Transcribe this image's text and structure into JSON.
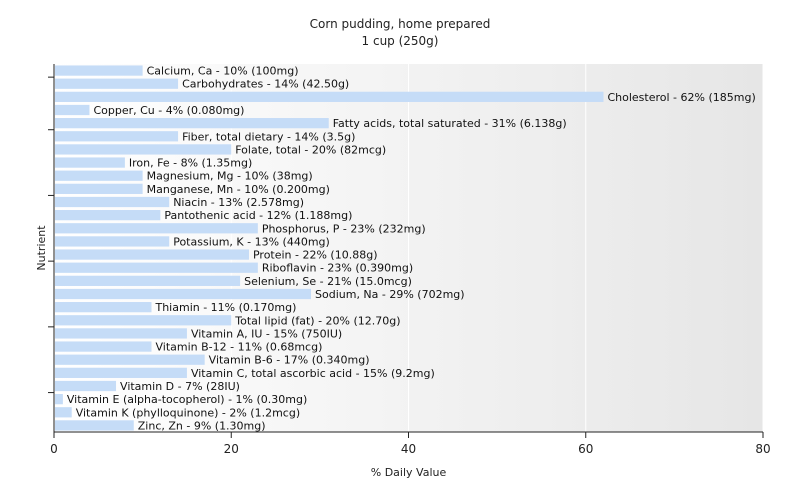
{
  "chart_data": {
    "type": "bar",
    "orientation": "horizontal",
    "title": "Corn pudding, home prepared",
    "subtitle": "1 cup (250g)",
    "xlabel": "% Daily Value",
    "ylabel": "Nutrient",
    "xlim": [
      0,
      80
    ],
    "xticks": [
      0,
      20,
      40,
      60,
      80
    ],
    "grid": true,
    "bar_color": "#c5dcf7",
    "categories": [
      "Calcium, Ca",
      "Carbohydrates",
      "Cholesterol",
      "Copper, Cu",
      "Fatty acids, total saturated",
      "Fiber, total dietary",
      "Folate, total",
      "Iron, Fe",
      "Magnesium, Mg",
      "Manganese, Mn",
      "Niacin",
      "Pantothenic acid",
      "Phosphorus, P",
      "Potassium, K",
      "Protein",
      "Riboflavin",
      "Selenium, Se",
      "Sodium, Na",
      "Thiamin",
      "Total lipid (fat)",
      "Vitamin A, IU",
      "Vitamin B-12",
      "Vitamin B-6",
      "Vitamin C, total ascorbic acid",
      "Vitamin D",
      "Vitamin E (alpha-tocopherol)",
      "Vitamin K (phylloquinone)",
      "Zinc, Zn"
    ],
    "values": [
      10,
      14,
      62,
      4,
      31,
      14,
      20,
      8,
      10,
      10,
      13,
      12,
      23,
      13,
      22,
      23,
      21,
      29,
      11,
      20,
      15,
      11,
      17,
      15,
      7,
      1,
      2,
      9
    ],
    "labels": [
      "Calcium, Ca - 10% (100mg)",
      "Carbohydrates - 14% (42.50g)",
      "Cholesterol - 62% (185mg)",
      "Copper, Cu - 4% (0.080mg)",
      "Fatty acids, total saturated - 31% (6.138g)",
      "Fiber, total dietary - 14% (3.5g)",
      "Folate, total - 20% (82mcg)",
      "Iron, Fe - 8% (1.35mg)",
      "Magnesium, Mg - 10% (38mg)",
      "Manganese, Mn - 10% (0.200mg)",
      "Niacin - 13% (2.578mg)",
      "Pantothenic acid - 12% (1.188mg)",
      "Phosphorus, P - 23% (232mg)",
      "Potassium, K - 13% (440mg)",
      "Protein - 22% (10.88g)",
      "Riboflavin - 23% (0.390mg)",
      "Selenium, Se - 21% (15.0mcg)",
      "Sodium, Na - 29% (702mg)",
      "Thiamin - 11% (0.170mg)",
      "Total lipid (fat) - 20% (12.70g)",
      "Vitamin A, IU - 15% (750IU)",
      "Vitamin B-12 - 11% (0.68mcg)",
      "Vitamin B-6 - 17% (0.340mg)",
      "Vitamin C, total ascorbic acid - 15% (9.2mg)",
      "Vitamin D - 7% (28IU)",
      "Vitamin E (alpha-tocopherol) - 1% (0.30mg)",
      "Vitamin K (phylloquinone) - 2% (1.2mcg)",
      "Zinc, Zn - 9% (1.30mg)"
    ]
  }
}
